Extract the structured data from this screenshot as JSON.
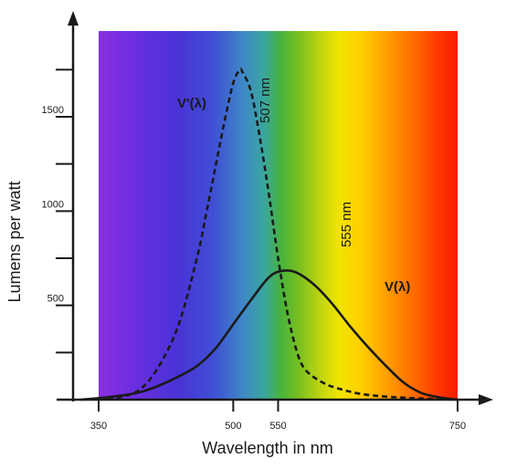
{
  "chart_data": {
    "type": "line",
    "title": "",
    "xlabel": "Wavelength in nm",
    "ylabel": "Lumens per watt",
    "xlim": [
      325,
      780
    ],
    "ylim": [
      0,
      1800
    ],
    "x_ticks": [
      350,
      500,
      550,
      750
    ],
    "y_ticks": [
      500,
      1000,
      1500
    ],
    "y_minor_ticks": [
      250,
      750,
      1250,
      1750
    ],
    "spectrum_band": {
      "x_range": [
        350,
        750
      ]
    },
    "series": [
      {
        "name": "V'(λ)",
        "line_style": "dashed",
        "x": [
          350,
          380,
          400,
          420,
          440,
          460,
          470,
          480,
          490,
          500,
          507,
          510,
          520,
          530,
          540,
          550,
          560,
          570,
          580,
          600,
          620,
          650,
          700,
          750
        ],
        "y": [
          0,
          20,
          70,
          200,
          410,
          760,
          990,
          1230,
          1470,
          1680,
          1747,
          1740,
          1630,
          1380,
          1080,
          750,
          470,
          270,
          160,
          90,
          55,
          25,
          8,
          0
        ]
      },
      {
        "name": "V(λ)",
        "line_style": "solid",
        "x": [
          330,
          350,
          380,
          400,
          420,
          440,
          460,
          480,
          500,
          520,
          540,
          555,
          570,
          590,
          610,
          630,
          650,
          670,
          690,
          710,
          730,
          750
        ],
        "y": [
          0,
          8,
          25,
          45,
          80,
          125,
          180,
          270,
          400,
          530,
          650,
          683,
          675,
          610,
          510,
          390,
          280,
          180,
          90,
          35,
          12,
          0
        ]
      }
    ],
    "annotations": [
      {
        "text": "507 nm",
        "x": 507,
        "y": 1747
      },
      {
        "text": "555 nm",
        "x": 555,
        "y": 683
      }
    ],
    "colors": {
      "axis": "#1a1a1a",
      "curve": "#1a1a1a"
    }
  }
}
